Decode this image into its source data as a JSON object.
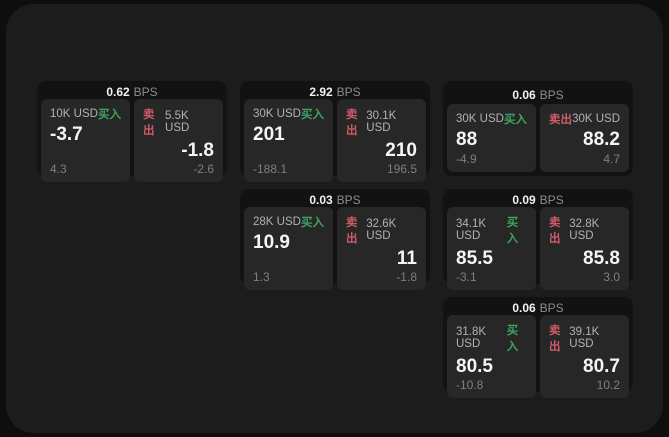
{
  "colors": {
    "accent_green": "#3ea45e",
    "accent_red": "#cf5a67"
  },
  "labels": {
    "bps_unit": "BPS",
    "buy": "买入",
    "sell": "卖出"
  },
  "cards": [
    {
      "bps": "0.62",
      "grid": {
        "row": 1,
        "col": 1
      },
      "buy": {
        "size": "10K USD",
        "value": "-3.7",
        "delta": "4.3"
      },
      "sell": {
        "size": "5.5K USD",
        "value": "-1.8",
        "delta": "-2.6"
      }
    },
    {
      "bps": "2.92",
      "grid": {
        "row": 1,
        "col": 2
      },
      "buy": {
        "size": "30K USD",
        "value": "201",
        "delta": "-188.1"
      },
      "sell": {
        "size": "30.1K USD",
        "value": "210",
        "delta": "196.5"
      }
    },
    {
      "bps": "0.06",
      "grid": {
        "row": 1,
        "col": 3
      },
      "buy": {
        "size": "30K USD",
        "value": "88",
        "delta": "-4.9"
      },
      "sell": {
        "size": "30K USD",
        "value": "88.2",
        "delta": "4.7"
      }
    },
    {
      "bps": "0.03",
      "grid": {
        "row": 2,
        "col": 2
      },
      "buy": {
        "size": "28K USD",
        "value": "10.9",
        "delta": "1.3"
      },
      "sell": {
        "size": "32.6K USD",
        "value": "11",
        "delta": "-1.8"
      }
    },
    {
      "bps": "0.09",
      "grid": {
        "row": 2,
        "col": 3
      },
      "buy": {
        "size": "34.1K USD",
        "value": "85.5",
        "delta": "-3.1"
      },
      "sell": {
        "size": "32.8K USD",
        "value": "85.8",
        "delta": "3.0"
      }
    },
    {
      "bps": "0.06",
      "grid": {
        "row": 3,
        "col": 3
      },
      "buy": {
        "size": "31.8K USD",
        "value": "80.5",
        "delta": "-10.8"
      },
      "sell": {
        "size": "39.1K USD",
        "value": "80.7",
        "delta": "10.2"
      }
    }
  ]
}
